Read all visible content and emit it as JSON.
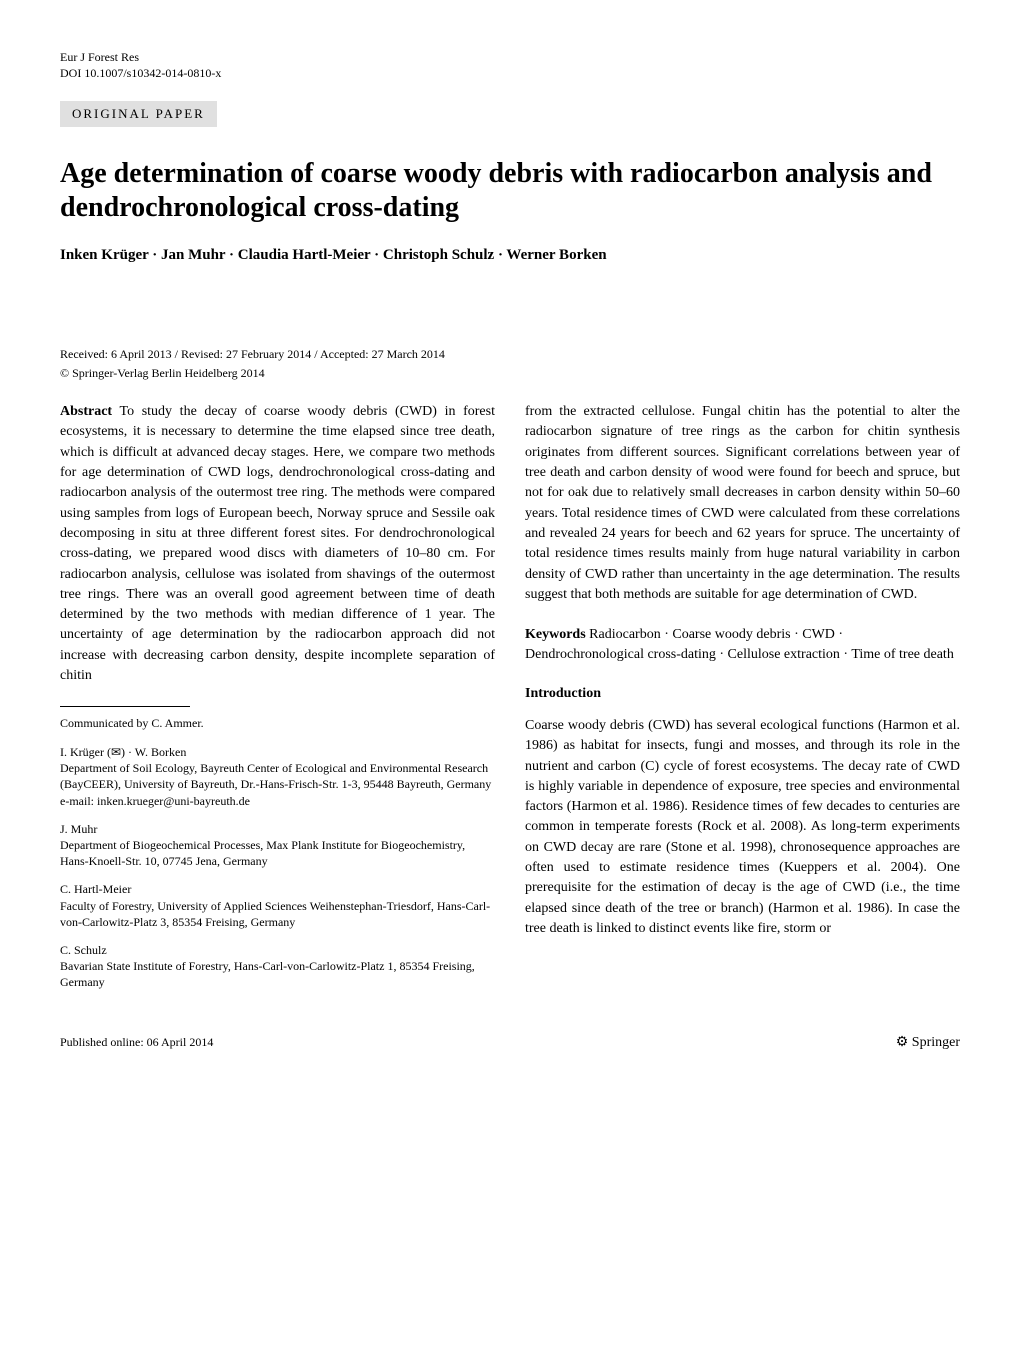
{
  "header": {
    "journal": "Eur J Forest Res",
    "doi": "DOI 10.1007/s10342-014-0810-x",
    "section_label": "ORIGINAL PAPER"
  },
  "title": "Age determination of coarse woody debris with radiocarbon analysis and dendrochronological cross-dating",
  "authors": "Inken Krüger · Jan Muhr · Claudia Hartl-Meier · Christoph Schulz · Werner Borken",
  "received": "Received: 6 April 2013 / Revised: 27 February 2014 / Accepted: 27 March 2014",
  "copyright": "© Springer-Verlag Berlin Heidelberg 2014",
  "abstract": {
    "heading": "Abstract",
    "text": "  To study the decay of coarse woody debris (CWD) in forest ecosystems, it is necessary to determine the time elapsed since tree death, which is difficult at advanced decay stages. Here, we compare two methods for age determination of CWD logs, dendrochronological cross-dating and radiocarbon analysis of the outermost tree ring. The methods were compared using samples from logs of European beech, Norway spruce and Sessile oak decomposing in situ at three different forest sites. For dendrochronological cross-dating, we prepared wood discs with diameters of 10–80 cm. For radiocarbon analysis, cellulose was isolated from shavings of the outermost tree rings. There was an overall good agreement between time of death determined by the two methods with median difference of 1 year. The uncertainty of age determination by the radiocarbon approach did not increase with decreasing carbon density, despite incomplete separation of chitin"
  },
  "abstract_right": "from the extracted cellulose. Fungal chitin has the potential to alter the radiocarbon signature of tree rings as the carbon for chitin synthesis originates from different sources. Significant correlations between year of tree death and carbon density of wood were found for beech and spruce, but not for oak due to relatively small decreases in carbon density within 50–60 years. Total residence times of CWD were calculated from these correlations and revealed 24 years for beech and 62 years for spruce. The uncertainty of total residence times results mainly from huge natural variability in carbon density of CWD rather than uncertainty in the age determination. The results suggest that both methods are suitable for age determination of CWD.",
  "keywords": {
    "heading": "Keywords",
    "text": "  Radiocarbon · Coarse woody debris · CWD · Dendrochronological cross-dating · Cellulose extraction · Time of tree death"
  },
  "introduction": {
    "heading": "Introduction",
    "text": "Coarse woody debris (CWD) has several ecological functions (Harmon et al. 1986) as habitat for insects, fungi and mosses, and through its role in the nutrient and carbon (C) cycle of forest ecosystems. The decay rate of CWD is highly variable in dependence of exposure, tree species and environmental factors (Harmon et al. 1986). Residence times of few decades to centuries are common in temperate forests (Rock et al. 2008). As long-term experiments on CWD decay are rare (Stone et al. 1998), chronosequence approaches are often used to estimate residence times (Kueppers et al. 2004). One prerequisite for the estimation of decay is the age of CWD (i.e., the time elapsed since death of the tree or branch) (Harmon et al. 1986). In case the tree death is linked to distinct events like fire, storm or"
  },
  "communicated": "Communicated by C. Ammer.",
  "affiliations": [
    {
      "names": "I. Krüger (✉) · W. Borken",
      "lines": "Department of Soil Ecology, Bayreuth Center of Ecological and Environmental Research (BayCEER), University of Bayreuth, Dr.-Hans-Frisch-Str. 1-3, 95448 Bayreuth, Germany",
      "email": "e-mail: inken.krueger@uni-bayreuth.de"
    },
    {
      "names": "J. Muhr",
      "lines": "Department of Biogeochemical Processes, Max Plank Institute for Biogeochemistry, Hans-Knoell-Str. 10, 07745 Jena, Germany",
      "email": ""
    },
    {
      "names": "C. Hartl-Meier",
      "lines": "Faculty of Forestry, University of Applied Sciences Weihenstephan-Triesdorf, Hans-Carl-von-Carlowitz-Platz 3, 85354 Freising, Germany",
      "email": ""
    },
    {
      "names": "C. Schulz",
      "lines": "Bavarian State Institute of Forestry, Hans-Carl-von-Carlowitz-Platz 1, 85354 Freising, Germany",
      "email": ""
    }
  ],
  "footer": {
    "published": "Published online: 06 April 2014",
    "publisher": "Springer"
  }
}
